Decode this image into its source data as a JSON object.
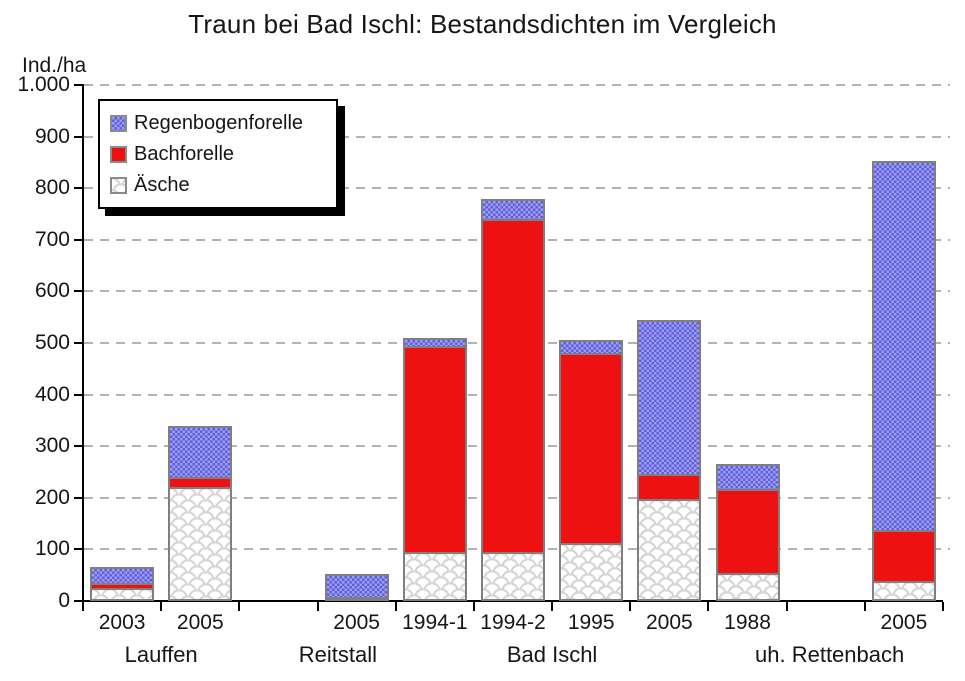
{
  "title": "Traun bei Bad Ischl: Bestandsdichten im Vergleich",
  "y_axis": {
    "unit_label": "Ind./ha",
    "tick_labels": [
      "0",
      "100",
      "200",
      "300",
      "400",
      "500",
      "600",
      "700",
      "800",
      "900",
      "1.000"
    ]
  },
  "legend": {
    "items": [
      "Regenbogenforelle",
      "Bachforelle",
      "Äsche"
    ]
  },
  "chart_data": {
    "type": "bar",
    "stacked": true,
    "title": "Traun bei Bad Ischl: Bestandsdichten im Vergleich",
    "xlabel": "",
    "ylabel": "Ind./ha",
    "ylim": [
      0,
      1000
    ],
    "ytick_step": 100,
    "grid": "dashed-horizontal",
    "legend_position": "top-left",
    "total_slots": 11,
    "categories": [
      {
        "label": "2003",
        "slot": 0,
        "group": "Lauffen"
      },
      {
        "label": "2005",
        "slot": 1,
        "group": "Lauffen"
      },
      {
        "label": "2005",
        "slot": 3,
        "group": "Reitstall"
      },
      {
        "label": "1994-1",
        "slot": 4,
        "group": "Bad Ischl"
      },
      {
        "label": "1994-2",
        "slot": 5,
        "group": "Bad Ischl"
      },
      {
        "label": "1995",
        "slot": 6,
        "group": "Bad Ischl"
      },
      {
        "label": "2005",
        "slot": 7,
        "group": "Bad Ischl"
      },
      {
        "label": "1988",
        "slot": 8,
        "group": "uh. Rettenbach"
      },
      {
        "label": "2005",
        "slot": 10,
        "group": "uh. Rettenbach"
      }
    ],
    "series": [
      {
        "name": "Äsche",
        "fill": "aesche",
        "color": "#ffffff",
        "values": [
          25,
          220,
          8,
          95,
          95,
          112,
          197,
          55,
          38
        ]
      },
      {
        "name": "Bachforelle",
        "fill": "bachforelle",
        "color": "#ee1111",
        "values": [
          10,
          20,
          0,
          400,
          645,
          368,
          50,
          163,
          100
        ]
      },
      {
        "name": "Regenbogenforelle",
        "fill": "regenbogenforelle",
        "color": "#7d7dee",
        "values": [
          30,
          100,
          44,
          15,
          40,
          25,
          298,
          47,
          714
        ]
      }
    ],
    "stack_totals": [
      65,
      340,
      52,
      510,
      780,
      505,
      545,
      265,
      852
    ],
    "group_labels": [
      {
        "label": "Lauffen",
        "slot_center": 1.0
      },
      {
        "label": "Reitstall",
        "slot_center": 3.26
      },
      {
        "label": "Bad Ischl",
        "slot_center": 6.0
      },
      {
        "label": "uh. Rettenbach",
        "slot_center": 9.55
      }
    ]
  }
}
